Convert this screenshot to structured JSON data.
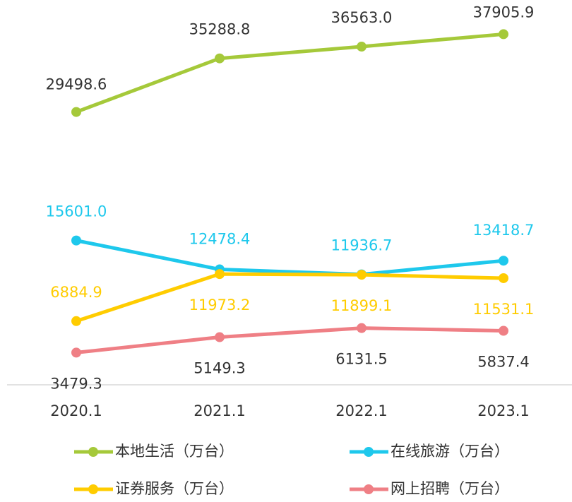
{
  "chart_data": {
    "type": "line",
    "categories": [
      "2020.1",
      "2021.1",
      "2022.1",
      "2023.1"
    ],
    "ylim": [
      0,
      40000
    ],
    "legend": "bottom",
    "series": [
      {
        "name": "本地生活（万台）",
        "color": "#a5c93a",
        "values": [
          29498.6,
          35288.8,
          36563.0,
          37905.9
        ],
        "value_labels": [
          "29498.6",
          "35288.8",
          "36563.0",
          "37905.9"
        ]
      },
      {
        "name": "在线旅游（万台）",
        "color": "#1ec8ec",
        "values": [
          15601.0,
          12478.4,
          11936.7,
          13418.7
        ],
        "value_labels": [
          "15601.0",
          "12478.4",
          "11936.7",
          "13418.7"
        ]
      },
      {
        "name": "证券服务（万台）",
        "color": "#ffcc00",
        "values": [
          6884.9,
          11973.2,
          11899.1,
          11531.1
        ],
        "value_labels": [
          "6884.9",
          "11973.2",
          "11899.1",
          "11531.1"
        ]
      },
      {
        "name": "网上招聘（万台）",
        "color": "#ef7f85",
        "values": [
          3479.3,
          5149.3,
          6131.5,
          5837.4
        ],
        "value_labels": [
          "3479.3",
          "5149.3",
          "6131.5",
          "5837.4"
        ]
      }
    ]
  }
}
